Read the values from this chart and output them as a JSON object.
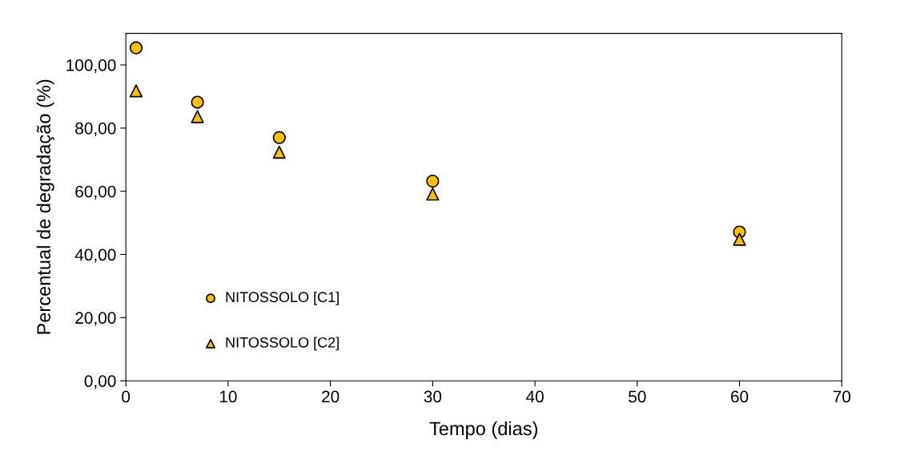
{
  "chart_data": {
    "type": "scatter",
    "xlabel": "Tempo (dias)",
    "ylabel": "Percentual de degradação (%)",
    "x": [
      1,
      7,
      15,
      30,
      60
    ],
    "series": [
      {
        "name": "NITOSSOLO [C1]",
        "color": "#ffc000",
        "marker": "circle",
        "values": [
          105.4,
          88.2,
          77.0,
          63.2,
          47.1
        ]
      },
      {
        "name": "NITOSSOLO [C2]",
        "color": "#ffc000",
        "marker": "triangle",
        "values": [
          91.8,
          83.6,
          72.4,
          59.1,
          44.8
        ]
      }
    ],
    "xlim": [
      0,
      70
    ],
    "xticks": [
      0,
      10,
      20,
      30,
      40,
      50,
      60,
      70
    ],
    "ylim": [
      0,
      110
    ],
    "yticks": [
      {
        "value": 0,
        "label": "0,00"
      },
      {
        "value": 20,
        "label": "20,00"
      },
      {
        "value": 40,
        "label": "40,00"
      },
      {
        "value": 60,
        "label": "60,00"
      },
      {
        "value": 80,
        "label": "80,00"
      },
      {
        "value": 100,
        "label": "100,00"
      }
    ],
    "grid": false,
    "legend": "bottom left"
  }
}
